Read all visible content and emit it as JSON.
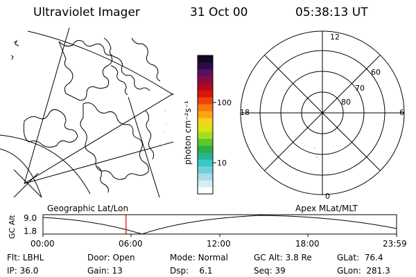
{
  "header": {
    "instrument": "Ultraviolet Imager",
    "date": "31 Oct 00",
    "time": "05:38:13 UT"
  },
  "colorbar": {
    "unit_label": "photon cm⁻²s⁻¹",
    "ticks": [
      {
        "value": 100,
        "label": "100"
      },
      {
        "value": 10,
        "label": "10"
      }
    ],
    "colors": [
      "#ffffff",
      "#d8ecf4",
      "#a9dbe8",
      "#6fd1d8",
      "#38c8c8",
      "#2ab28f",
      "#28b04a",
      "#5cc62a",
      "#a6dd23",
      "#d9e41e",
      "#f6d21b",
      "#f7a515",
      "#f57a10",
      "#ec420c",
      "#d6160c",
      "#b4081e",
      "#8a0b43",
      "#58115f",
      "#2d0a4a",
      "#110822"
    ]
  },
  "left_panel": {
    "label": "Geographic Lat/Lon"
  },
  "right_panel": {
    "label": "Apex MLat/MLT",
    "mlt_labels": {
      "top": "12",
      "bottom": "0",
      "left": "18",
      "right": "6"
    },
    "mlat_labels": [
      "60",
      "70",
      "80"
    ]
  },
  "altitude_plot": {
    "ylabel": "GC Alt",
    "ytick_top": "9.0",
    "ytick_bottom": "1.8",
    "xticks": [
      "00:00",
      "06:00",
      "12:00",
      "18:00",
      "23:59"
    ],
    "current_time_hours": 5.637
  },
  "info": {
    "flt_label": "Flt:",
    "flt_value": "LBHL",
    "ip_label": "IP:",
    "ip_value": "36.0",
    "door_label": "Door:",
    "door_value": "Open",
    "gain_label": "Gain:",
    "gain_value": "13",
    "mode_label": "Mode:",
    "mode_value": "Normal",
    "dsp_label": "Dsp:",
    "dsp_value": "6.1",
    "gcalt_label": "GC Alt:",
    "gcalt_value": "3.8 Re",
    "seq_label": "Seq:",
    "seq_value": "39",
    "glat_label": "GLat:",
    "glat_value": "76.4",
    "glon_label": "GLon:",
    "glon_value": "281.3"
  },
  "colors": {
    "foreground": "#000000",
    "marker": "#cc0000"
  }
}
